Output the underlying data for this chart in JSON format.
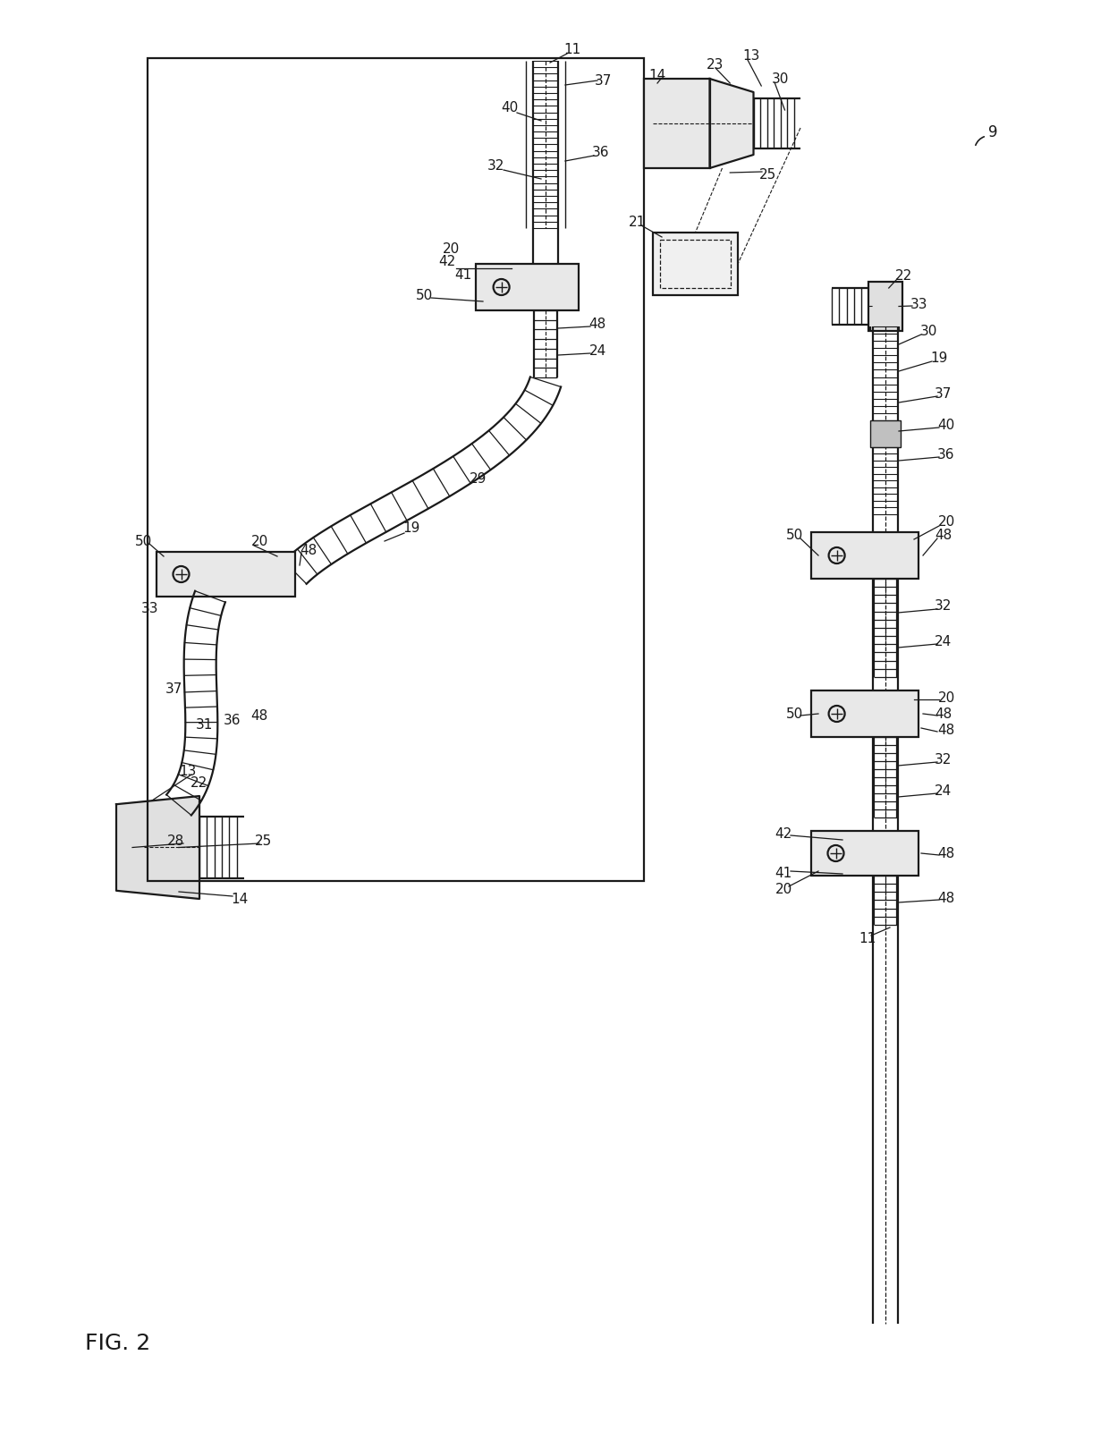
{
  "figure_label": "FIG. 2",
  "background_color": "#ffffff",
  "line_color": "#1a1a1a",
  "figsize": [
    12.4,
    16.1
  ],
  "dpi": 100
}
